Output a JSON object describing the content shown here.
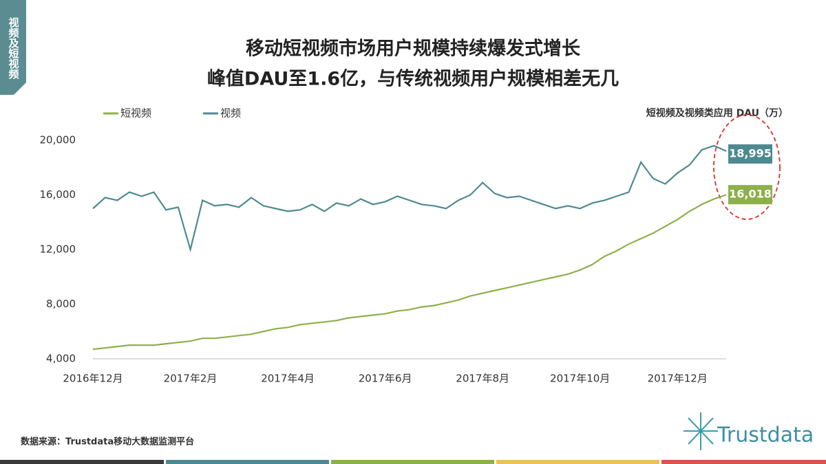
{
  "side_tab": "视频及短视频",
  "source": "数据来源：Trustdata移动大数据监测平台",
  "logo": "Trustdata",
  "chart_data": {
    "type": "line",
    "title": "移动短视频市场用户规模持续爆发式增长",
    "subtitle": "峰值DAU至1.6亿，与传统视频用户规模相差无几",
    "y_label": "短视频及视频类应用 DAU（万）",
    "categories": [
      "2016年12月",
      null,
      null,
      null,
      null,
      null,
      null,
      null,
      "2017年2月",
      null,
      null,
      null,
      null,
      null,
      null,
      null,
      "2017年4月",
      null,
      null,
      null,
      null,
      null,
      null,
      null,
      "2017年6月",
      null,
      null,
      null,
      null,
      null,
      null,
      null,
      "2017年8月",
      null,
      null,
      null,
      null,
      null,
      null,
      null,
      "2017年10月",
      null,
      null,
      null,
      null,
      null,
      null,
      null,
      "2017年12月",
      null,
      null,
      null,
      null
    ],
    "series": [
      {
        "name": "短视频",
        "color": "#8db04a",
        "values": [
          4700,
          4800,
          4900,
          5000,
          5000,
          5000,
          5100,
          5200,
          5300,
          5500,
          5500,
          5600,
          5700,
          5800,
          6000,
          6200,
          6300,
          6500,
          6600,
          6700,
          6800,
          7000,
          7100,
          7200,
          7300,
          7500,
          7600,
          7800,
          7900,
          8100,
          8300,
          8600,
          8800,
          9000,
          9200,
          9400,
          9600,
          9800,
          10000,
          10200,
          10500,
          10900,
          11500,
          11900,
          12400,
          12800,
          13200,
          13700,
          14200,
          14800,
          15300,
          15700,
          16000
        ],
        "end_label": {
          "value": 16018,
          "label": "16,018"
        }
      },
      {
        "name": "视频",
        "color": "#4d8a90",
        "values": [
          15000,
          15800,
          15600,
          16200,
          15900,
          16200,
          14900,
          15100,
          12000,
          15600,
          15200,
          15300,
          15100,
          15800,
          15200,
          15000,
          14800,
          14900,
          15300,
          14800,
          15400,
          15200,
          15700,
          15300,
          15500,
          15900,
          15600,
          15300,
          15200,
          15000,
          15600,
          16000,
          16900,
          16100,
          15800,
          15900,
          15600,
          15300,
          15000,
          15200,
          15000,
          15400,
          15600,
          15900,
          16200,
          18400,
          17200,
          16800,
          17600,
          18200,
          19300,
          19600,
          19200
        ],
        "end_label": {
          "value": 18995,
          "label": "18,995"
        }
      }
    ],
    "ylim": [
      4000,
      20000
    ],
    "yticks": [
      {
        "value": 4000,
        "label": "4,000"
      },
      {
        "value": 8000,
        "label": "8,000"
      },
      {
        "value": 12000,
        "label": "12,000"
      },
      {
        "value": 16000,
        "label": "16,000"
      },
      {
        "value": 20000,
        "label": "20,000"
      }
    ],
    "grid": false
  }
}
